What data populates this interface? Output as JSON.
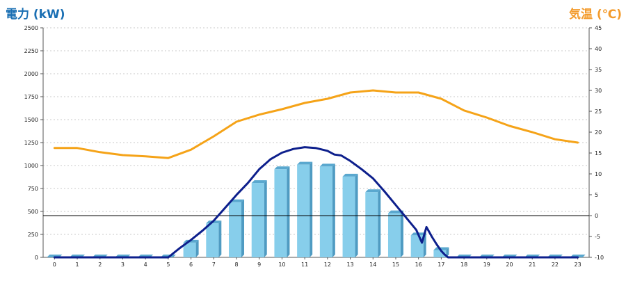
{
  "chart_data": {
    "type": "bar",
    "title": "",
    "ylabel_left": "電力 (kW)",
    "ylabel_right": "気温 (℃)",
    "categories": [
      "0",
      "1",
      "2",
      "3",
      "4",
      "5",
      "6",
      "7",
      "8",
      "9",
      "10",
      "11",
      "12",
      "13",
      "14",
      "15",
      "16",
      "17",
      "18",
      "19",
      "20",
      "21",
      "22",
      "23"
    ],
    "y_left_ticks": [
      0,
      250,
      500,
      750,
      1000,
      1250,
      1500,
      1750,
      2000,
      2250,
      2500
    ],
    "y_left_ticks_labels": [
      "0",
      "250",
      "500",
      "750",
      "1000",
      "1250",
      "1500",
      "1750",
      "2000",
      "2250",
      "2500"
    ],
    "y_right_ticks_labels": [
      "-10",
      "-5",
      "0",
      "5",
      "10",
      "15",
      "20",
      "25",
      "30",
      "35",
      "40",
      "45"
    ],
    "ylim_left": [
      0,
      2500
    ],
    "ylim_right": [
      -10,
      45
    ],
    "grid": true,
    "series": [
      {
        "type": "bar",
        "axis": "left",
        "color": "#87ceeb",
        "values": [
          0,
          0,
          0,
          0,
          0,
          0,
          160,
          370,
          600,
          810,
          960,
          1010,
          990,
          880,
          710,
          480,
          240,
          80,
          0,
          0,
          0,
          0,
          0,
          0
        ]
      },
      {
        "type": "line",
        "axis": "left",
        "color": "#0d1f8c",
        "x": [
          0,
          1,
          2,
          3,
          4,
          5,
          5.5,
          6,
          6.5,
          7,
          7.5,
          8,
          8.5,
          9,
          9.5,
          10,
          10.5,
          11,
          11.5,
          12,
          12.3,
          12.6,
          13,
          13.5,
          14,
          14.5,
          15,
          15.5,
          15.9,
          16.15,
          16.35,
          16.6,
          16.8,
          17,
          17.15,
          17.3,
          17.5,
          18,
          19,
          20,
          21,
          22,
          23
        ],
        "values": [
          0,
          0,
          0,
          0,
          0,
          0,
          100,
          190,
          290,
          400,
          540,
          680,
          810,
          960,
          1070,
          1140,
          1180,
          1200,
          1190,
          1160,
          1120,
          1110,
          1050,
          960,
          860,
          720,
          570,
          420,
          300,
          160,
          330,
          220,
          140,
          70,
          30,
          0,
          0,
          0,
          0,
          0,
          0,
          0,
          0
        ]
      },
      {
        "type": "line",
        "axis": "right",
        "color": "#f5a318",
        "x": [
          0,
          1,
          2,
          3,
          4,
          5,
          6,
          7,
          8,
          9,
          10,
          11,
          12,
          13,
          14,
          15,
          16,
          17,
          18,
          19,
          20,
          21,
          22,
          23
        ],
        "values": [
          16.2,
          16.2,
          15.2,
          14.5,
          14.2,
          13.8,
          15.8,
          19,
          22.5,
          24.2,
          25.5,
          27,
          28,
          29.5,
          30,
          29.5,
          29.5,
          28,
          25.2,
          23.5,
          21.5,
          20,
          18.3,
          17.5
        ]
      }
    ],
    "reference_line": {
      "axis": "right",
      "value": 0
    }
  }
}
